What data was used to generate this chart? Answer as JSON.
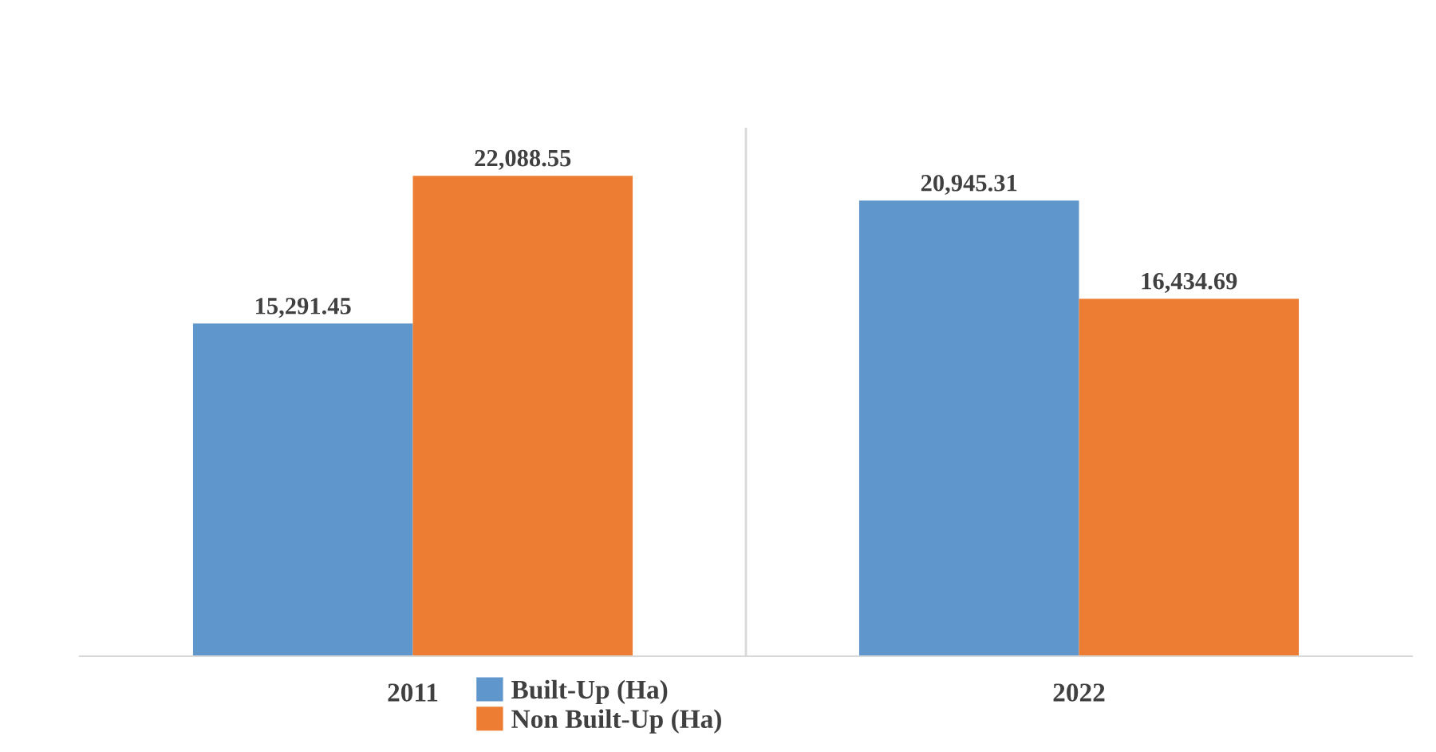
{
  "chart_data": {
    "type": "bar",
    "categories": [
      "2011",
      "2022"
    ],
    "series": [
      {
        "name": "Built-Up (Ha)",
        "color": "#5f96cb",
        "values": [
          15291.45,
          20945.31
        ],
        "value_labels": [
          "15,291.45",
          "20,945.31"
        ]
      },
      {
        "name": "Non Built-Up (Ha)",
        "color": "#ec7d32",
        "values": [
          22088.55,
          16434.69
        ],
        "value_labels": [
          "22,088.55",
          "16,434.69"
        ]
      }
    ],
    "legend": "bottom"
  }
}
